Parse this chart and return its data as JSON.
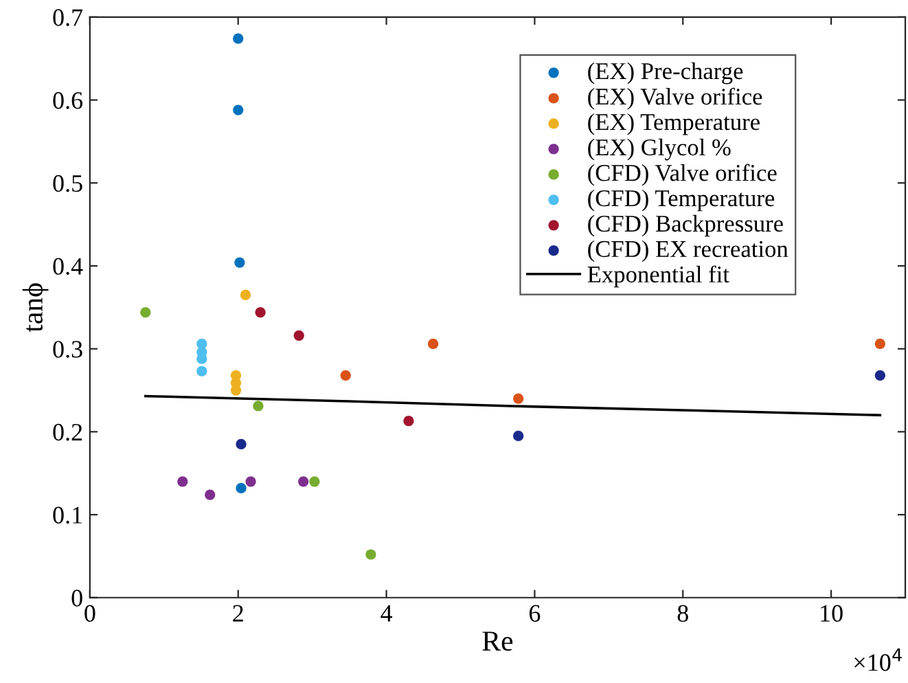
{
  "chart_data": {
    "type": "scatter",
    "xlabel": "Re",
    "ylabel": "tanϕ",
    "annotations": [
      "×10$^{4}$"
    ],
    "xlim": [
      0,
      11
    ],
    "xticks": [
      0,
      2,
      4,
      6,
      8,
      10
    ],
    "ylim": [
      0,
      0.7
    ],
    "yticks": [
      0,
      0.1,
      0.2,
      0.3,
      0.4,
      0.5,
      0.6,
      0.7
    ],
    "grid": false,
    "legend": "top right",
    "marker": "circle",
    "series": [
      {
        "name": "(EX) Pre-charge",
        "color": "#0072bd",
        "x": [
          2.0,
          2.0,
          2.02,
          2.04
        ],
        "values": [
          0.674,
          0.588,
          0.404,
          0.132
        ]
      },
      {
        "name": "(EX) Valve orifice",
        "color": "#d95319",
        "x": [
          3.45,
          4.63,
          5.78,
          10.66
        ],
        "values": [
          0.268,
          0.306,
          0.24,
          0.306
        ]
      },
      {
        "name": "(EX) Temperature",
        "color": "#edb120",
        "x": [
          2.1,
          1.97,
          1.97,
          1.97
        ],
        "values": [
          0.365,
          0.268,
          0.259,
          0.25
        ]
      },
      {
        "name": "(EX) Glycol %",
        "color": "#7e2f8e",
        "x": [
          1.25,
          1.62,
          2.17,
          2.88
        ],
        "values": [
          0.14,
          0.124,
          0.14,
          0.14
        ]
      },
      {
        "name": "(CFD) Valve orifice",
        "color": "#77ac30",
        "x": [
          0.75,
          2.27,
          3.03,
          3.79
        ],
        "values": [
          0.344,
          0.231,
          0.14,
          0.052
        ]
      },
      {
        "name": "(CFD) Temperature",
        "color": "#4dbeee",
        "x": [
          1.51,
          1.51,
          1.51,
          1.51
        ],
        "values": [
          0.306,
          0.296,
          0.288,
          0.273
        ]
      },
      {
        "name": "(CFD) Backpressure",
        "color": "#a2142f",
        "x": [
          2.3,
          2.82,
          4.3
        ],
        "values": [
          0.344,
          0.316,
          0.213
        ]
      },
      {
        "name": "(CFD) EX recreation",
        "color": "#1a2a8c",
        "x": [
          2.04,
          5.78,
          10.66
        ],
        "values": [
          0.185,
          0.195,
          0.268
        ]
      },
      {
        "name": "Exponential fit",
        "type": "line",
        "color": "#000000",
        "line_style": "solid",
        "marker": "none",
        "x": [
          0.75,
          3.4,
          5.7,
          8.0,
          10.66
        ],
        "values": [
          0.243,
          0.237,
          0.231,
          0.226,
          0.22
        ]
      }
    ]
  }
}
